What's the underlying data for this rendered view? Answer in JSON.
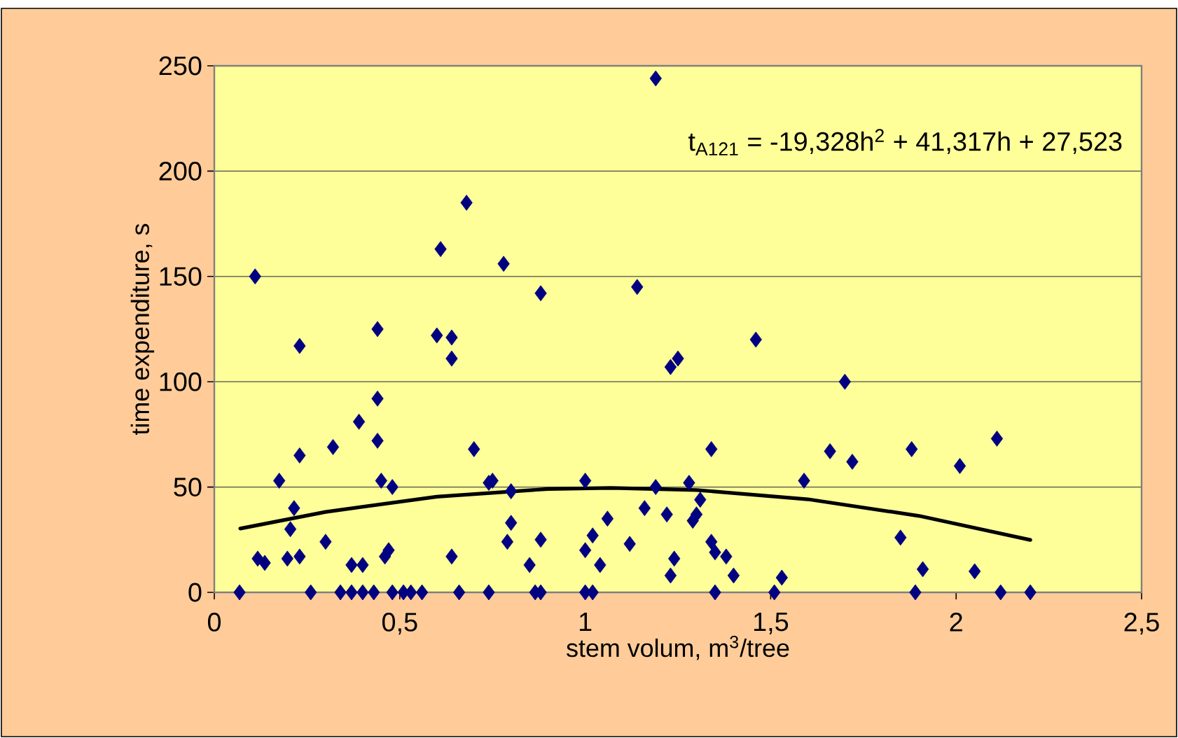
{
  "chart_data": {
    "type": "scatter",
    "xlabel": "stem volum, m$^{3}$/tree",
    "ylabel": "time expenditure, s",
    "annotations": [
      "t$_{A121}$ = -19,328h$^{2}$ + 41,317h + 27,523"
    ],
    "xlim": [
      0,
      2.5
    ],
    "xticks": [
      0,
      {
        "value": 0.5,
        "label": "0,5"
      },
      1,
      {
        "value": 1.5,
        "label": "1,5"
      },
      2,
      {
        "value": 2.5,
        "label": "2,5"
      }
    ],
    "ylim": [
      0,
      250
    ],
    "yticks": [
      0,
      50,
      100,
      150,
      200,
      250
    ],
    "grid": "y",
    "marker": "diamond",
    "series": [
      {
        "color": "#000080",
        "x": [
          0.11,
          0.23,
          0.6,
          0.64,
          0.64,
          0.61,
          0.68,
          0.78,
          0.88,
          1.14,
          1.19,
          1.46,
          1.23,
          1.25,
          1.7,
          0.44,
          0.068,
          0.117,
          0.136,
          0.175,
          0.197,
          0.205,
          0.215,
          0.23,
          0.23,
          0.26,
          0.3,
          0.32,
          0.34,
          0.37,
          0.37,
          0.39,
          0.4,
          0.4,
          0.43,
          0.44,
          0.44,
          0.45,
          0.48,
          0.46,
          0.47,
          0.48,
          0.51,
          0.53,
          0.56,
          0.64,
          0.66,
          0.7,
          0.74,
          0.75,
          0.74,
          0.8,
          0.8,
          0.79,
          0.85,
          0.865,
          0.88,
          0.88,
          1.0,
          1.0,
          1.0,
          1.02,
          1.02,
          1.04,
          1.06,
          1.12,
          1.16,
          1.19,
          1.34,
          1.66,
          1.72,
          1.88,
          2.01,
          2.11,
          1.59,
          1.28,
          1.31,
          1.22,
          1.29,
          1.3,
          1.34,
          1.35,
          1.38,
          1.24,
          1.23,
          1.4,
          1.35,
          1.51,
          1.53,
          1.85,
          1.91,
          1.89,
          2.05,
          2.12,
          2.2
        ],
        "values": [
          150,
          117,
          122,
          121,
          111,
          163,
          185,
          156,
          142,
          145,
          244,
          120,
          107,
          111,
          100,
          125,
          0,
          16,
          14,
          53,
          16,
          30,
          40,
          17,
          65,
          0,
          24,
          69,
          0,
          13,
          0,
          81,
          13,
          0,
          0,
          92,
          72,
          53,
          50,
          17,
          20,
          0,
          0,
          0,
          0,
          17,
          0,
          68,
          52,
          53,
          0,
          48,
          33,
          24,
          13,
          0,
          0,
          25,
          53,
          20,
          0,
          0,
          27,
          13,
          35,
          23,
          40,
          50,
          68,
          67,
          62,
          68,
          60,
          73,
          53,
          52,
          44,
          37,
          34,
          37,
          24,
          19,
          17,
          16,
          8,
          8,
          0,
          0,
          7,
          26,
          11,
          0,
          10,
          0,
          0
        ]
      },
      {
        "type": "line",
        "marker": "none",
        "color": "#000000",
        "x": [
          0.07,
          0.3,
          0.6,
          0.9,
          1.07,
          1.3,
          1.6,
          1.9,
          2.2
        ],
        "values": [
          30.3,
          38.2,
          45.4,
          49.1,
          49.6,
          48.6,
          44.2,
          36.3,
          24.9
        ]
      }
    ]
  }
}
